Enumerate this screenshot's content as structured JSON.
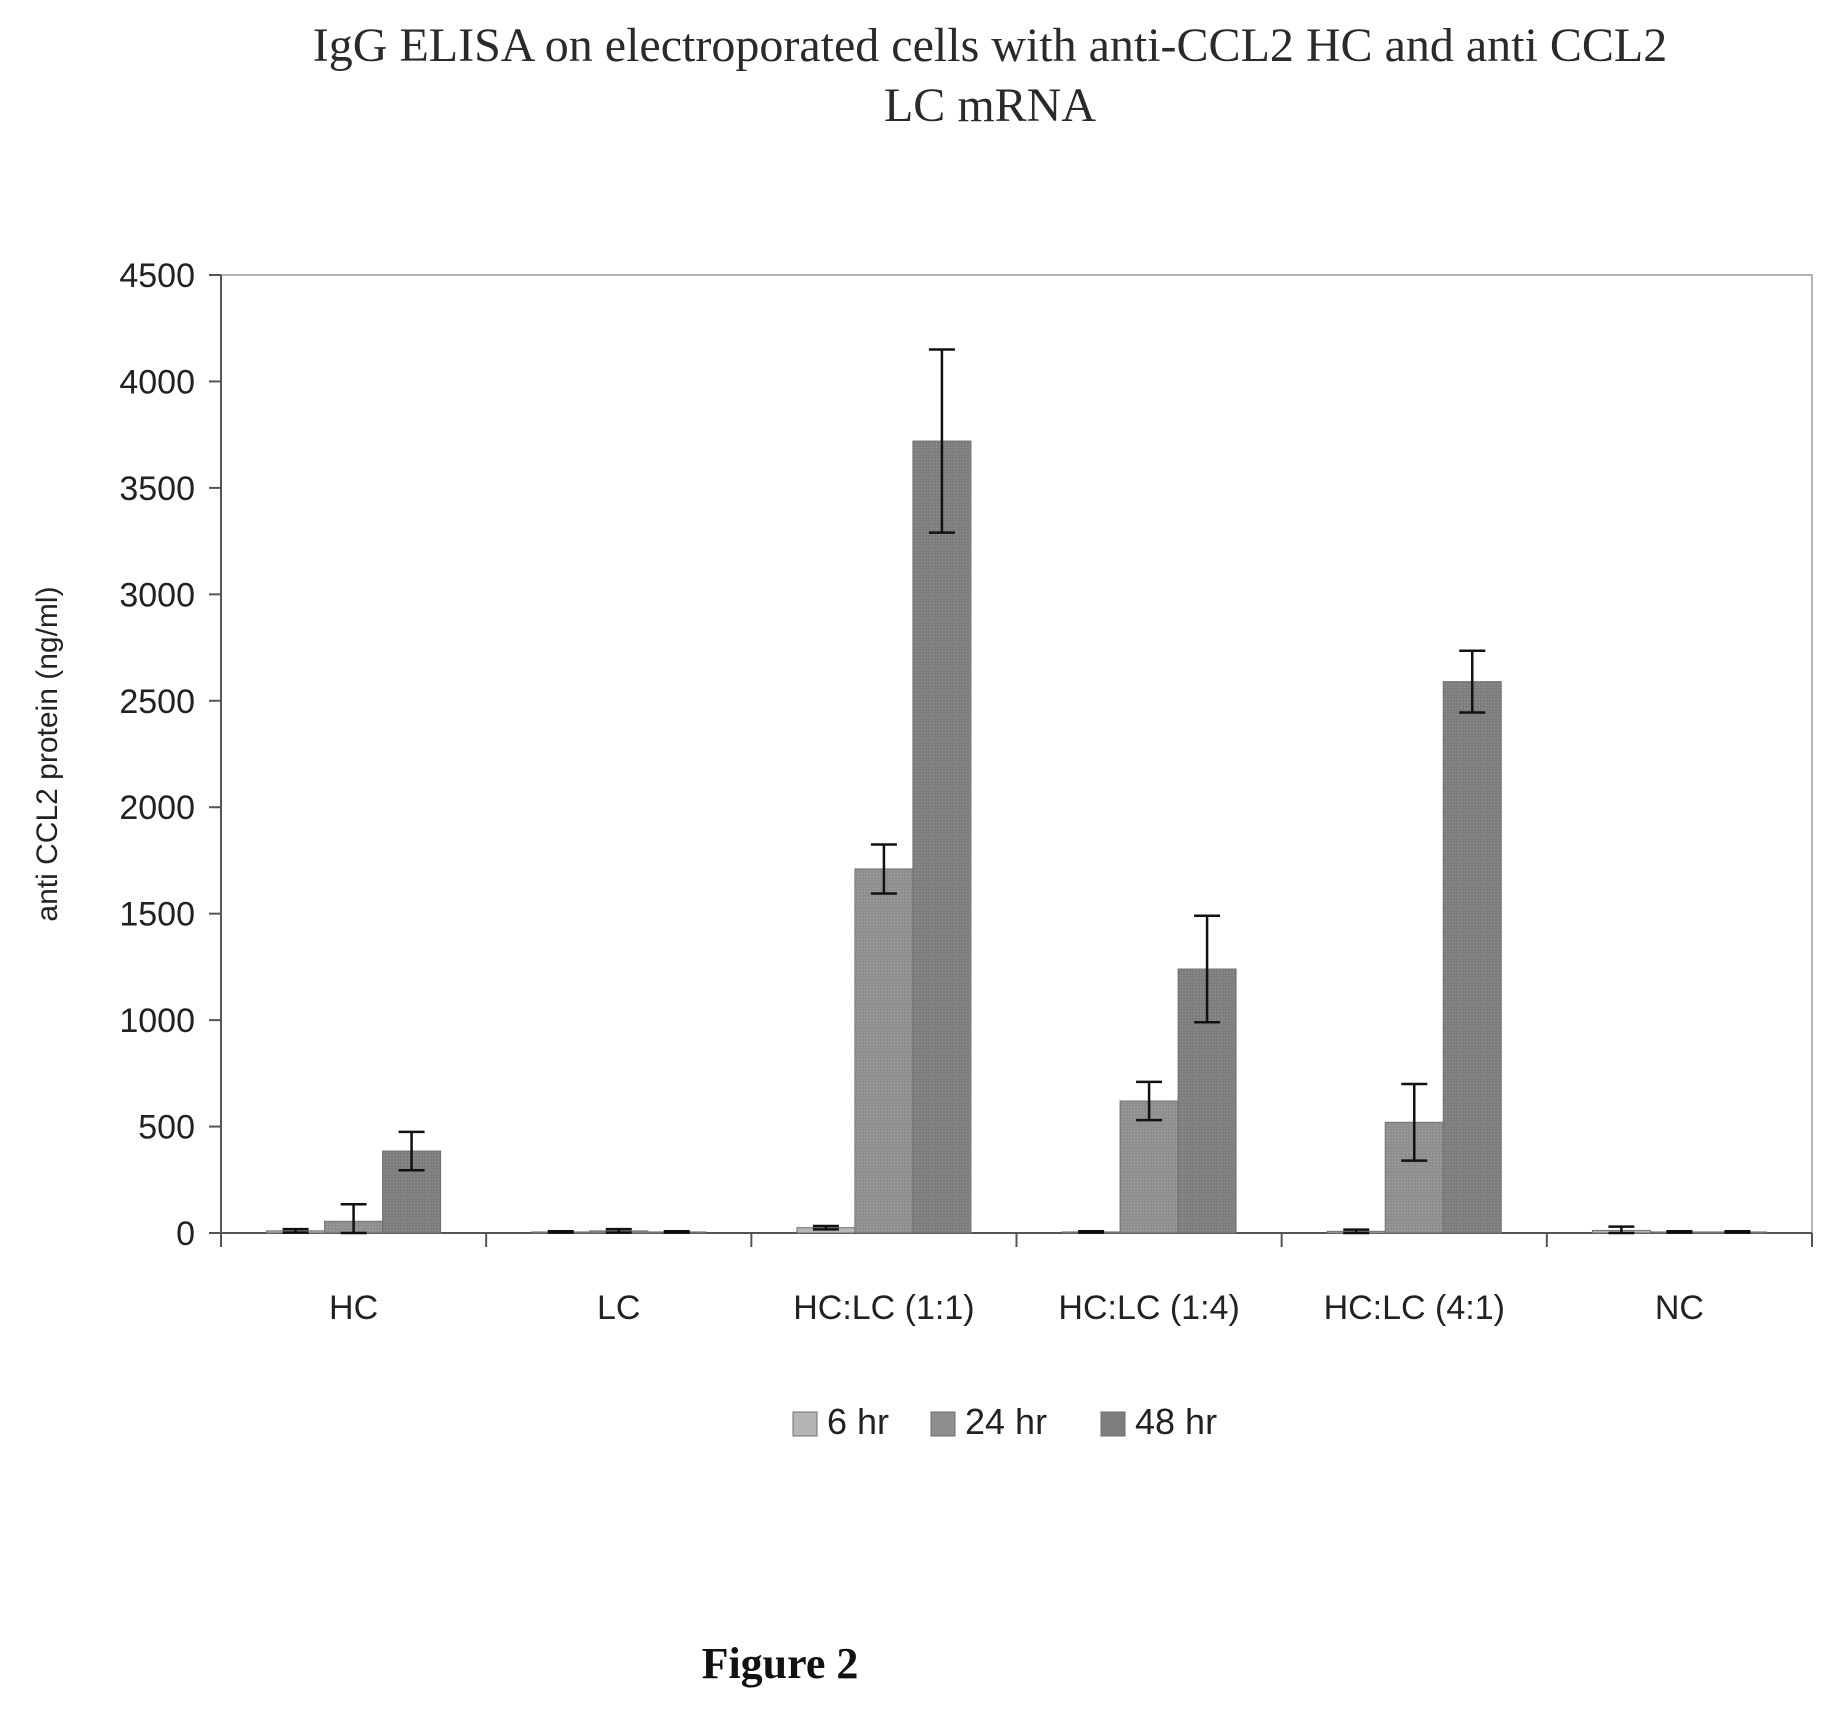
{
  "chart_data": {
    "type": "bar",
    "title": "IgG ELISA on electroporated cells with anti-CCL2 HC and anti CCL2 LC mRNA",
    "title_lines": [
      "IgG ELISA on electroporated cells with anti-CCL2 HC and anti CCL2",
      "LC mRNA"
    ],
    "xlabel": "",
    "ylabel": "anti CCL2 protein (ng/ml)",
    "ylim": [
      0,
      4500
    ],
    "yticks": [
      0,
      500,
      1000,
      1500,
      2000,
      2500,
      3000,
      3500,
      4000,
      4500
    ],
    "grid": false,
    "legend_position": "bottom",
    "categories": [
      "HC",
      "LC",
      "HC:LC (1:1)",
      "HC:LC (1:4)",
      "HC:LC (4:1)",
      "NC"
    ],
    "series": [
      {
        "name": "6 hr",
        "color": "#b5b5b5",
        "values": [
          10,
          5,
          25,
          5,
          8,
          12
        ],
        "errors": [
          8,
          3,
          8,
          3,
          8,
          18
        ]
      },
      {
        "name": "24 hr",
        "color": "#8f8f8f",
        "values": [
          55,
          10,
          1710,
          620,
          520,
          5
        ],
        "errors": [
          80,
          8,
          115,
          90,
          180,
          3
        ]
      },
      {
        "name": "48 hr",
        "color": "#7e7e7e",
        "values": [
          385,
          5,
          3720,
          1240,
          2590,
          5
        ],
        "errors": [
          90,
          3,
          430,
          250,
          145,
          3
        ]
      }
    ]
  },
  "caption": "Figure 2"
}
